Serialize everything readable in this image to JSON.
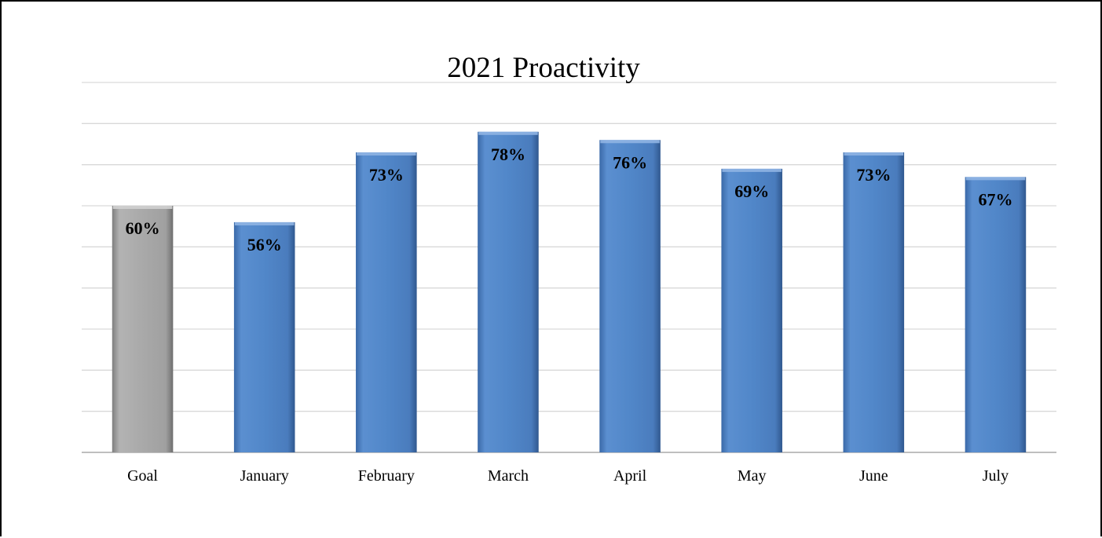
{
  "chart_data": {
    "type": "bar",
    "title": "2021 Proactivity",
    "xlabel": "",
    "ylabel": "",
    "categories": [
      "Goal",
      "January",
      "February",
      "March",
      "April",
      "May",
      "June",
      "July"
    ],
    "values": [
      60,
      56,
      73,
      78,
      76,
      69,
      73,
      67
    ],
    "value_labels": [
      "60%",
      "56%",
      "73%",
      "78%",
      "76%",
      "69%",
      "73%",
      "67%"
    ],
    "ylim": [
      0,
      90
    ],
    "grid": true,
    "legend": "none",
    "colors": {
      "goal": "#a6a6a6",
      "month": "#4a7ebf",
      "gridline": "#d9d9d9",
      "axis": "#bfbfbf"
    }
  }
}
